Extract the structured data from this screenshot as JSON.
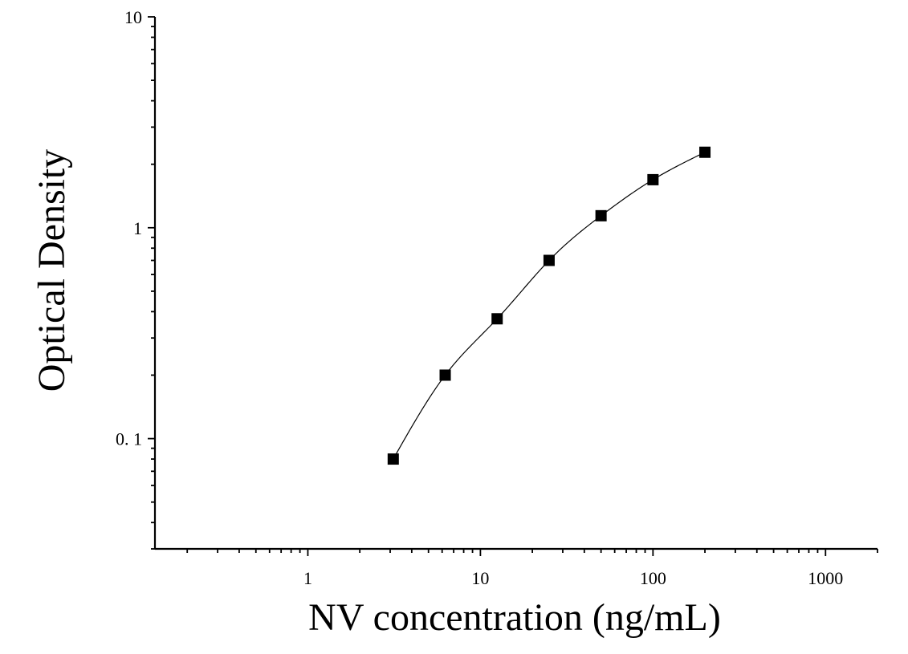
{
  "chart_data": {
    "type": "scatter",
    "xlabel": "NV concentration (ng/mL)",
    "ylabel": "Optical Density",
    "xscale": "log",
    "yscale": "log",
    "xlim": [
      0.13,
      2000
    ],
    "ylim": [
      0.03,
      10
    ],
    "x_tick_values": [
      1,
      10,
      100,
      1000
    ],
    "x_tick_labels": [
      "1",
      "10",
      "100",
      "1000"
    ],
    "y_tick_values": [
      0.1,
      1,
      10
    ],
    "y_tick_labels": [
      "0. 1",
      "1",
      "10"
    ],
    "series": [
      {
        "x": [
          3.125,
          6.25,
          12.5,
          25,
          50,
          100,
          200
        ],
        "y": [
          0.08,
          0.2,
          0.37,
          0.7,
          1.14,
          1.69,
          2.28
        ],
        "marker": "square",
        "fit_line": true
      }
    ],
    "marker_color": "#000000",
    "line_color": "#000000",
    "grid": false,
    "legend": "none"
  }
}
